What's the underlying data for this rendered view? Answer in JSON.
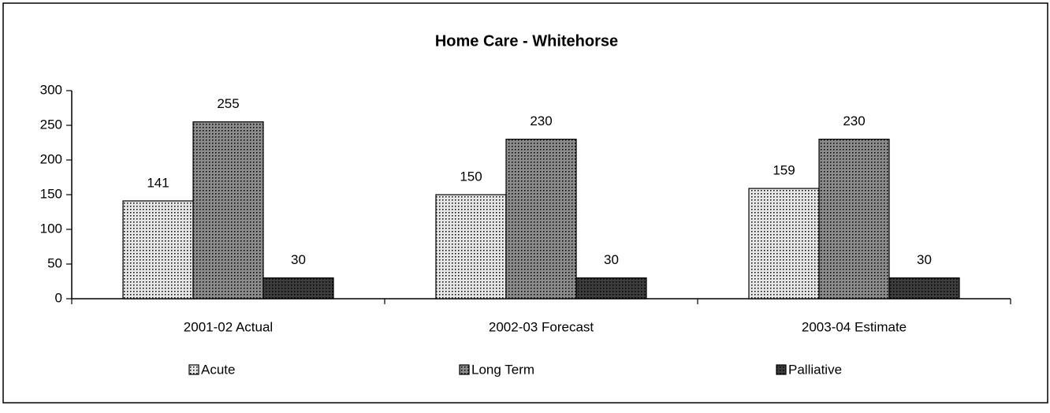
{
  "chart_data": {
    "type": "bar",
    "title": "Home Care - Whitehorse",
    "categories": [
      "2001-02 Actual",
      "2002-03 Forecast",
      "2003-04 Estimate"
    ],
    "series": [
      {
        "name": "Acute",
        "color": "#e6e6e6",
        "values": [
          141,
          150,
          159
        ]
      },
      {
        "name": "Long Term",
        "color": "#8c8c8c",
        "values": [
          255,
          230,
          230
        ]
      },
      {
        "name": "Palliative",
        "color": "#3c3c3c",
        "values": [
          30,
          30,
          30
        ]
      }
    ],
    "ylim": [
      0,
      300
    ],
    "yticks": [
      0,
      50,
      100,
      150,
      200,
      250,
      300
    ],
    "grid": false,
    "legend": "bottom"
  }
}
